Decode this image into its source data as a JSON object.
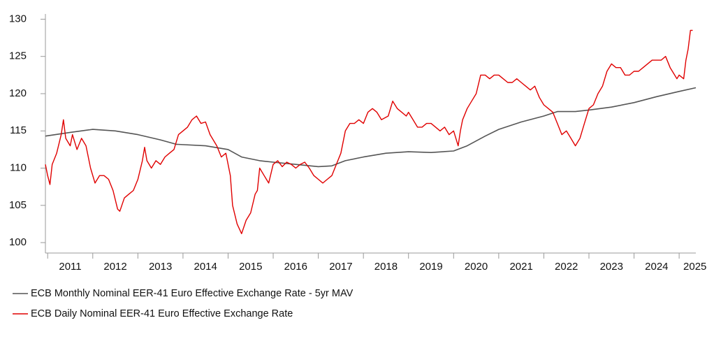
{
  "chart_data": {
    "type": "line",
    "xlim": [
      2010.95,
      2025.37
    ],
    "ylim": [
      98.6,
      130.7
    ],
    "yticks": [
      100,
      105,
      110,
      115,
      120,
      125,
      130
    ],
    "xticks": [
      {
        "value": 2011.5,
        "label": "2011"
      },
      {
        "value": 2012.5,
        "label": "2012"
      },
      {
        "value": 2013.5,
        "label": "2013"
      },
      {
        "value": 2014.5,
        "label": "2014"
      },
      {
        "value": 2015.5,
        "label": "2015"
      },
      {
        "value": 2016.5,
        "label": "2016"
      },
      {
        "value": 2017.5,
        "label": "2017"
      },
      {
        "value": 2018.5,
        "label": "2018"
      },
      {
        "value": 2019.5,
        "label": "2019"
      },
      {
        "value": 2020.5,
        "label": "2020"
      },
      {
        "value": 2021.5,
        "label": "2021"
      },
      {
        "value": 2022.5,
        "label": "2022"
      },
      {
        "value": 2023.5,
        "label": "2023"
      },
      {
        "value": 2024.5,
        "label": "2024"
      },
      {
        "value": 2025.35,
        "label": "2025"
      }
    ],
    "legend": "bottom",
    "series": [
      {
        "name": "ECB Monthly Nominal EER-41 Euro Effective Exchange Rate - 5yr MAV",
        "color": "#555555",
        "x": [
          2010.95,
          2011.5,
          2012.0,
          2012.5,
          2013.0,
          2013.5,
          2013.85,
          2014.5,
          2015.0,
          2015.3,
          2015.7,
          2016.0,
          2016.5,
          2017.0,
          2017.3,
          2017.6,
          2018.0,
          2018.5,
          2019.0,
          2019.5,
          2020.0,
          2020.3,
          2020.7,
          2021.0,
          2021.5,
          2022.0,
          2022.3,
          2022.7,
          2023.0,
          2023.5,
          2024.0,
          2024.5,
          2025.0,
          2025.37
        ],
        "values": [
          114.3,
          114.8,
          115.2,
          115,
          114.5,
          113.8,
          113.2,
          113,
          112.5,
          111.5,
          111,
          110.8,
          110.5,
          110.2,
          110.3,
          111,
          111.5,
          112,
          112.2,
          112.1,
          112.3,
          113,
          114.3,
          115.2,
          116.2,
          117,
          117.6,
          117.6,
          117.8,
          118.2,
          118.8,
          119.6,
          120.3,
          120.8
        ]
      },
      {
        "name": "ECB Daily Nominal EER-41 Euro Effective Exchange Rate",
        "color": "#e00000",
        "x": [
          2010.95,
          2011.0,
          2011.05,
          2011.1,
          2011.2,
          2011.3,
          2011.35,
          2011.4,
          2011.5,
          2011.55,
          2011.65,
          2011.75,
          2011.85,
          2011.95,
          2012.05,
          2012.15,
          2012.25,
          2012.35,
          2012.45,
          2012.55,
          2012.6,
          2012.7,
          2012.8,
          2012.9,
          2013.0,
          2013.1,
          2013.15,
          2013.2,
          2013.3,
          2013.4,
          2013.5,
          2013.6,
          2013.7,
          2013.8,
          2013.9,
          2014.0,
          2014.1,
          2014.2,
          2014.3,
          2014.4,
          2014.5,
          2014.6,
          2014.75,
          2014.85,
          2014.95,
          2015.05,
          2015.1,
          2015.2,
          2015.3,
          2015.4,
          2015.5,
          2015.6,
          2015.65,
          2015.7,
          2015.8,
          2015.9,
          2016.0,
          2016.1,
          2016.2,
          2016.3,
          2016.4,
          2016.5,
          2016.6,
          2016.7,
          2016.8,
          2016.9,
          2017.0,
          2017.1,
          2017.2,
          2017.3,
          2017.4,
          2017.5,
          2017.6,
          2017.7,
          2017.8,
          2017.9,
          2018.0,
          2018.1,
          2018.2,
          2018.3,
          2018.4,
          2018.55,
          2018.65,
          2018.75,
          2018.85,
          2018.95,
          2019.0,
          2019.1,
          2019.2,
          2019.3,
          2019.4,
          2019.5,
          2019.6,
          2019.7,
          2019.8,
          2019.9,
          2020.0,
          2020.1,
          2020.15,
          2020.2,
          2020.3,
          2020.4,
          2020.5,
          2020.6,
          2020.7,
          2020.8,
          2020.9,
          2021.0,
          2021.1,
          2021.2,
          2021.3,
          2021.4,
          2021.5,
          2021.6,
          2021.7,
          2021.8,
          2021.9,
          2022.0,
          2022.1,
          2022.2,
          2022.3,
          2022.4,
          2022.5,
          2022.6,
          2022.7,
          2022.8,
          2022.9,
          2023.0,
          2023.1,
          2023.2,
          2023.3,
          2023.4,
          2023.5,
          2023.6,
          2023.7,
          2023.8,
          2023.9,
          2024.0,
          2024.1,
          2024.2,
          2024.3,
          2024.4,
          2024.5,
          2024.6,
          2024.7,
          2024.8,
          2024.9,
          2024.95,
          2025.0,
          2025.1,
          2025.15,
          2025.2,
          2025.25,
          2025.3
        ],
        "values": [
          110.5,
          109,
          107.8,
          110.5,
          112,
          114.5,
          116.5,
          114,
          113,
          114.5,
          112.5,
          114,
          113,
          110,
          108,
          109,
          109,
          108.5,
          107,
          104.5,
          104.2,
          106,
          106.5,
          107,
          108.5,
          111,
          112.8,
          111,
          110,
          111,
          110.5,
          111.5,
          112,
          112.5,
          114.5,
          115,
          115.5,
          116.5,
          117,
          116,
          116.2,
          114.5,
          113,
          111.5,
          112,
          109,
          105,
          102.5,
          101.2,
          103,
          104,
          106.5,
          107,
          110,
          109,
          108,
          110.5,
          111,
          110.2,
          110.8,
          110.5,
          110,
          110.5,
          110.8,
          110,
          109,
          108.5,
          108,
          108.5,
          109,
          110.5,
          112,
          115,
          116,
          116,
          116.5,
          116,
          117.5,
          118,
          117.5,
          116.5,
          117,
          119,
          118,
          117.5,
          117,
          117.5,
          116.5,
          115.5,
          115.5,
          116,
          116,
          115.5,
          115,
          115.5,
          114.5,
          115,
          113,
          115,
          116.5,
          118,
          119,
          120,
          122.5,
          122.5,
          122,
          122.5,
          122.5,
          122,
          121.5,
          121.5,
          122,
          121.5,
          121,
          120.5,
          121,
          119.5,
          118.5,
          118,
          117.5,
          116,
          114.5,
          115,
          114,
          113,
          114,
          116,
          118,
          118.5,
          120,
          121,
          123,
          124,
          123.5,
          123.5,
          122.5,
          122.5,
          123,
          123,
          123.5,
          124,
          124.5,
          124.5,
          124.5,
          125,
          123.5,
          122.5,
          122,
          122.5,
          122,
          124.5,
          126,
          128.5,
          128.5
        ]
      }
    ]
  }
}
